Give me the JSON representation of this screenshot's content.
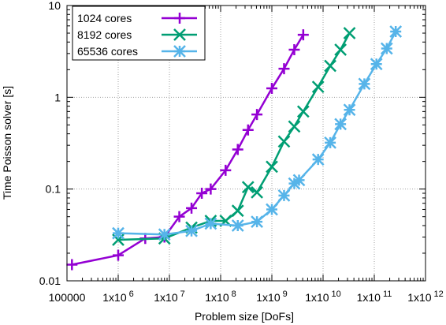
{
  "chart_data": {
    "type": "line",
    "xlabel": "Problem size [DoFs]",
    "ylabel": "Time Poisson solver [s]",
    "x_scale": "log",
    "y_scale": "log",
    "xlim": [
      100000,
      1000000000000
    ],
    "ylim": [
      0.01,
      10
    ],
    "grid": true,
    "legend_position": "top-left",
    "x_ticks": [
      {
        "value": 100000,
        "mantissa": "100000",
        "exp": ""
      },
      {
        "value": 1000000,
        "mantissa": "1x10",
        "exp": "6"
      },
      {
        "value": 10000000,
        "mantissa": "1x10",
        "exp": "7"
      },
      {
        "value": 100000000,
        "mantissa": "1x10",
        "exp": "8"
      },
      {
        "value": 1000000000,
        "mantissa": "1x10",
        "exp": "9"
      },
      {
        "value": 10000000000,
        "mantissa": "1x10",
        "exp": "10"
      },
      {
        "value": 100000000000,
        "mantissa": "1x10",
        "exp": "11"
      },
      {
        "value": 1000000000000,
        "mantissa": "1x10",
        "exp": "12"
      }
    ],
    "y_ticks": [
      {
        "value": 0.01,
        "label": "0.01"
      },
      {
        "value": 0.1,
        "label": "0.1"
      },
      {
        "value": 1,
        "label": "1"
      },
      {
        "value": 10,
        "label": "10"
      }
    ],
    "series": [
      {
        "name": "1024 cores",
        "color": "#9400d3",
        "marker": "plus",
        "x": [
          125000,
          1000000,
          3375000,
          8000000,
          15600000,
          27000000,
          42900000,
          64000000,
          125000000,
          216000000,
          343000000,
          512000000,
          1000000000,
          1730000000,
          2740000000,
          4100000000
        ],
        "y": [
          0.015,
          0.019,
          0.029,
          0.03,
          0.05,
          0.062,
          0.09,
          0.1,
          0.16,
          0.27,
          0.44,
          0.65,
          1.25,
          2.05,
          3.3,
          4.8
        ]
      },
      {
        "name": "8192 cores",
        "color": "#009e73",
        "marker": "cross",
        "x": [
          1000000,
          8000000,
          27000000,
          64000000,
          125000000,
          216000000,
          343000000,
          512000000,
          1000000000,
          1730000000,
          2740000000,
          4100000000,
          8000000000,
          13800000000,
          21900000000,
          32800000000
        ],
        "y": [
          0.028,
          0.029,
          0.038,
          0.045,
          0.045,
          0.058,
          0.105,
          0.092,
          0.175,
          0.33,
          0.48,
          0.7,
          1.3,
          2.2,
          3.3,
          5.0
        ]
      },
      {
        "name": "65536 cores",
        "color": "#56b4e9",
        "marker": "star",
        "x": [
          1000000,
          8000000,
          27000000,
          64000000,
          216000000,
          512000000,
          1000000000,
          1730000000,
          2740000000,
          3400000000,
          8000000000,
          13800000000,
          21900000000,
          32800000000,
          64000000000,
          110000000000,
          175000000000,
          262000000000
        ],
        "y": [
          0.033,
          0.032,
          0.035,
          0.042,
          0.04,
          0.044,
          0.06,
          0.085,
          0.115,
          0.125,
          0.21,
          0.32,
          0.51,
          0.73,
          1.4,
          2.3,
          3.4,
          5.2
        ]
      }
    ]
  }
}
